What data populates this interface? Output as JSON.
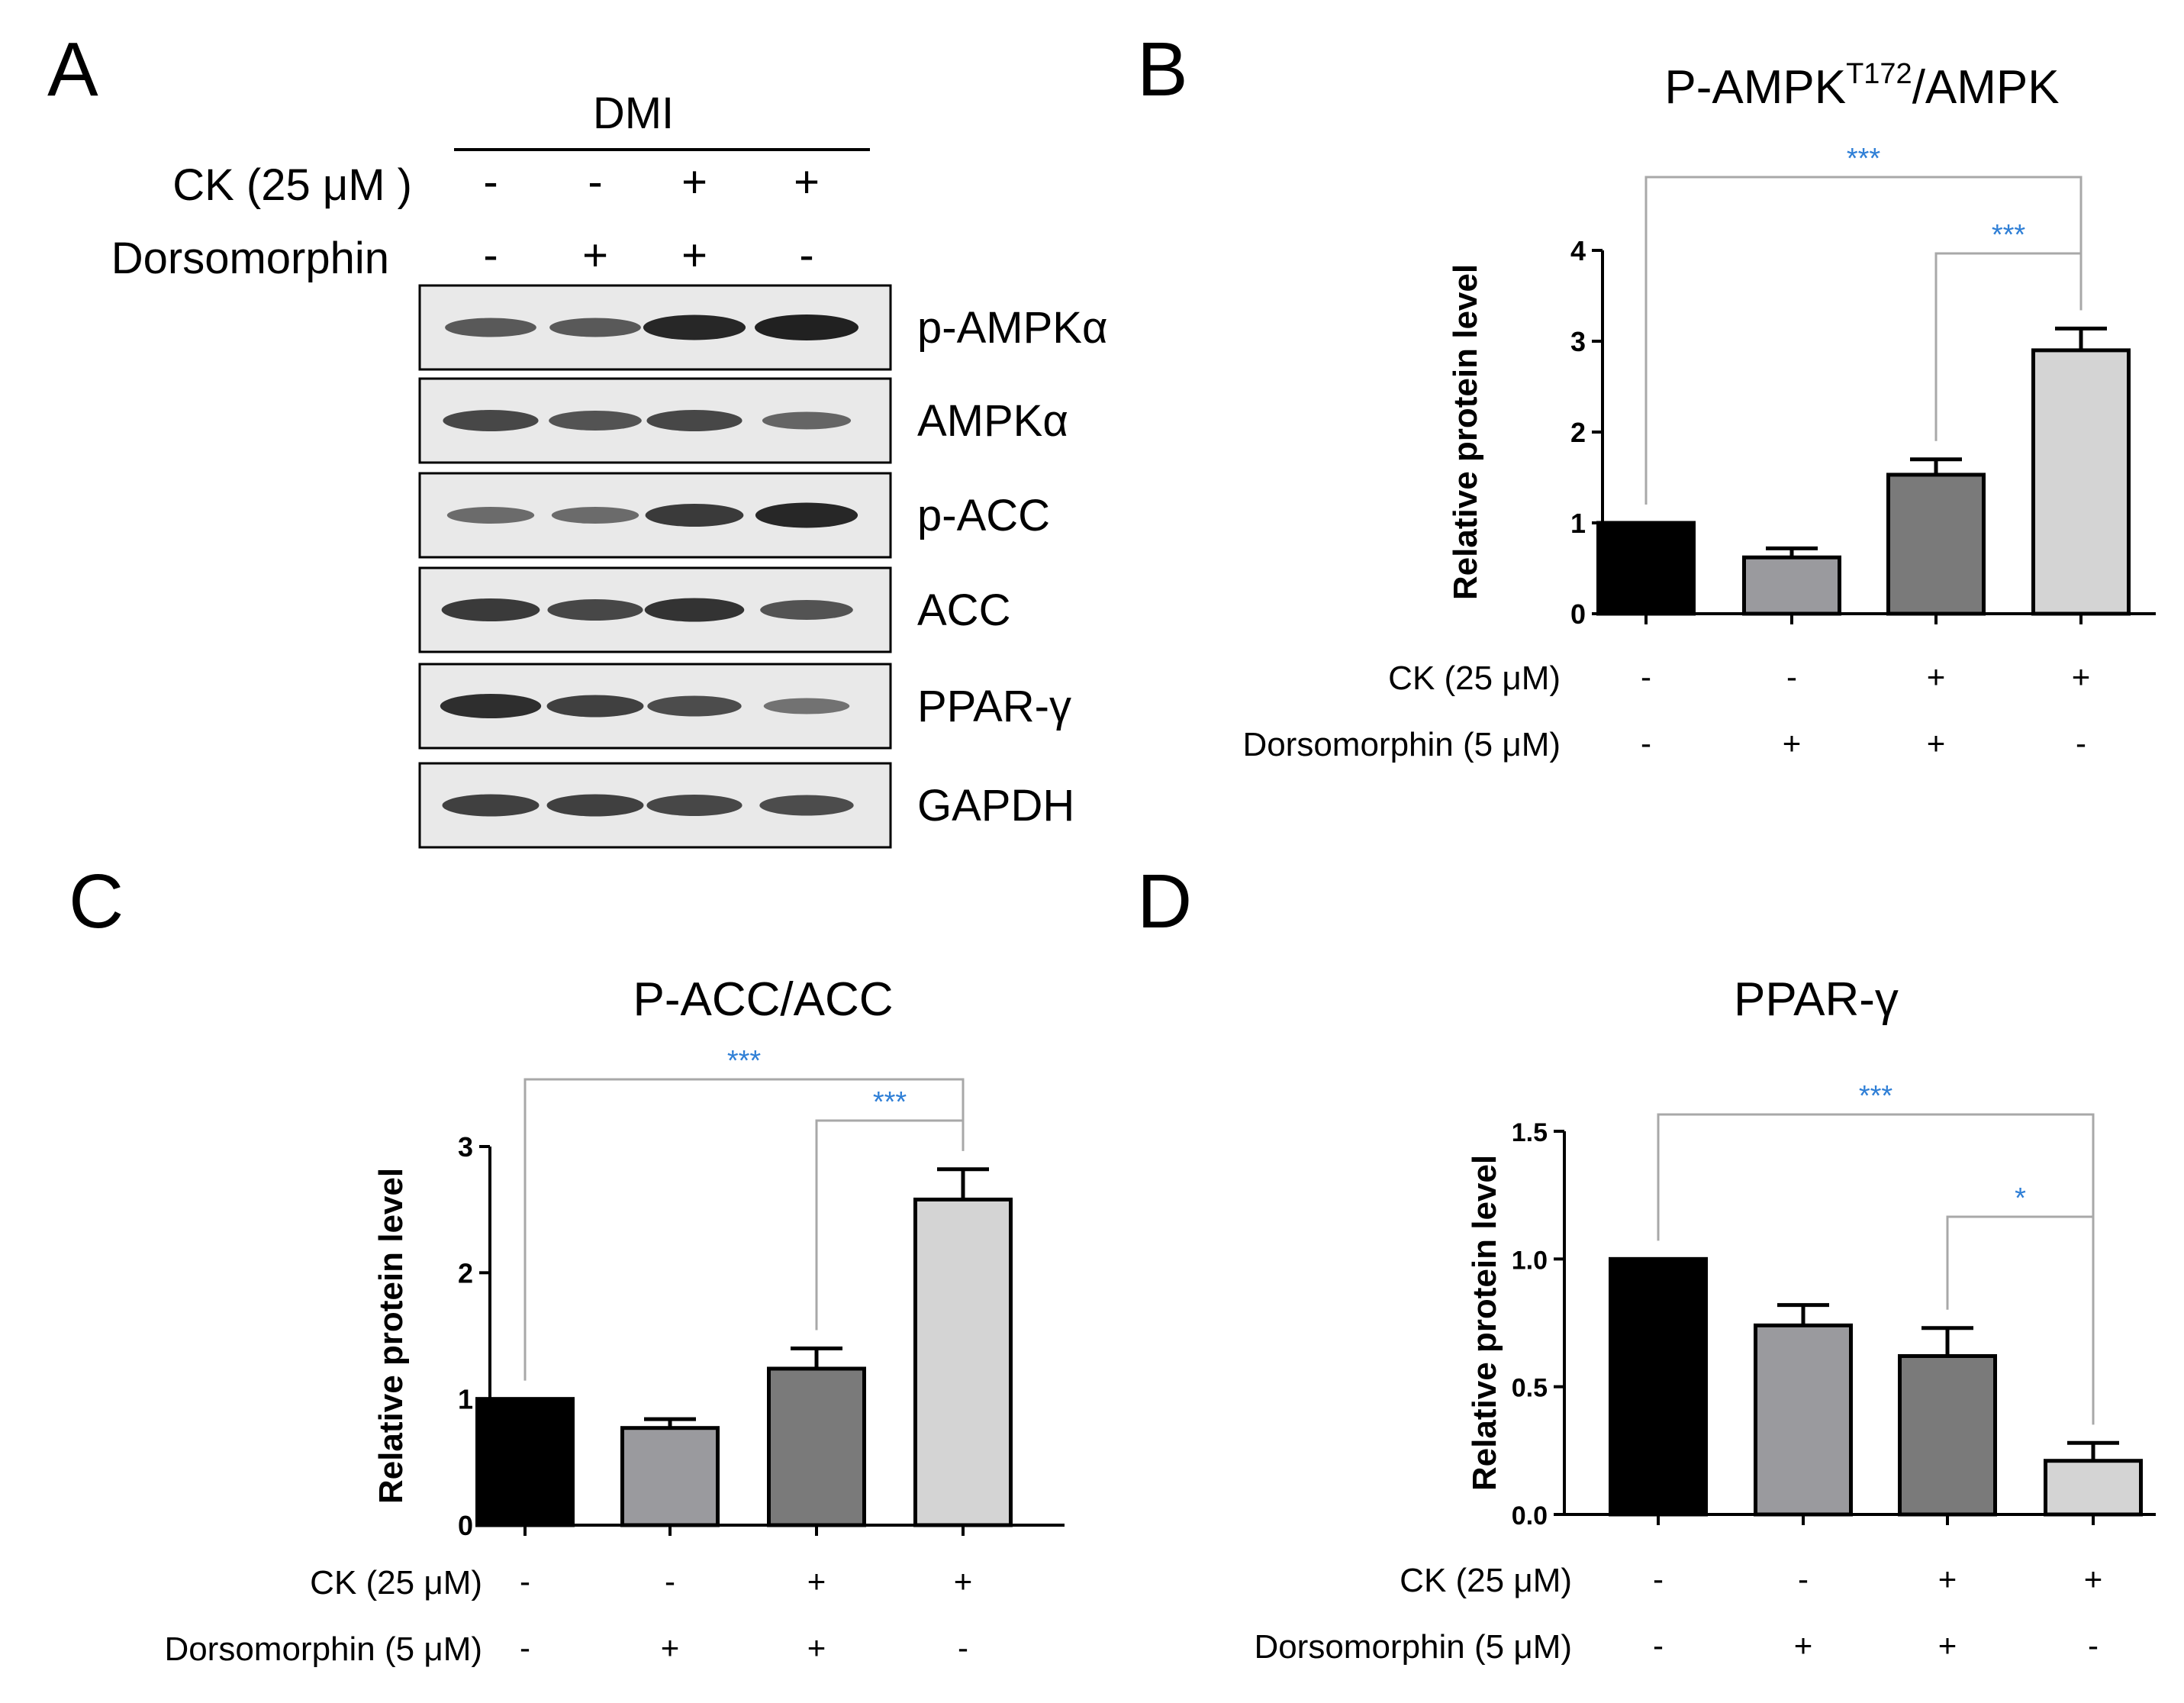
{
  "panel_a": {
    "letter": "A",
    "group_label": "DMI",
    "conditions": [
      {
        "label": "CK (25 μM )",
        "signs": [
          "-",
          "-",
          "+",
          "+"
        ]
      },
      {
        "label": "Dorsomorphin",
        "signs": [
          "-",
          "+",
          "+",
          "-"
        ]
      }
    ],
    "blots": [
      {
        "label": "p-AMPKα",
        "intensities": [
          0.55,
          0.55,
          0.95,
          1.0
        ]
      },
      {
        "label": "AMPKα",
        "intensities": [
          0.7,
          0.6,
          0.7,
          0.45
        ]
      },
      {
        "label": "p-ACC",
        "intensities": [
          0.4,
          0.4,
          0.8,
          0.95
        ]
      },
      {
        "label": "ACC",
        "intensities": [
          0.8,
          0.7,
          0.85,
          0.6
        ]
      },
      {
        "label": "PPAR-γ",
        "intensities": [
          0.9,
          0.75,
          0.65,
          0.35
        ]
      },
      {
        "label": "GAPDH",
        "intensities": [
          0.75,
          0.75,
          0.7,
          0.65
        ]
      }
    ]
  },
  "chart_data": [
    {
      "type": "bar",
      "letter": "B",
      "title_main": "P-AMPK",
      "title_sup": "T172",
      "title_tail": "/AMPK",
      "ylabel": "Relative protein level",
      "ylim": [
        0,
        4
      ],
      "yticks": [
        "0",
        "1",
        "2",
        "3",
        "4"
      ],
      "ytick_values": [
        0,
        1,
        2,
        3,
        4
      ],
      "values": [
        1.0,
        0.62,
        1.53,
        2.9
      ],
      "errors": [
        0,
        0.1,
        0.17,
        0.24
      ],
      "colors": [
        "#000000",
        "#9a9a9e",
        "#7a7a7a",
        "#d4d4d4"
      ],
      "conditions": [
        {
          "label": "CK (25 μM)",
          "signs": [
            "-",
            "-",
            "+",
            "+"
          ]
        },
        {
          "label": "Dorsomorphin (5 μM)",
          "signs": [
            "-",
            "+",
            "+",
            "-"
          ]
        }
      ],
      "significance": [
        {
          "from": 0,
          "to": 3,
          "label": "***",
          "level": "outer"
        },
        {
          "from": 2,
          "to": 3,
          "label": "***",
          "level": "inner"
        }
      ]
    },
    {
      "type": "bar",
      "letter": "C",
      "title_main": "P-ACC/ACC",
      "title_sup": "",
      "title_tail": "",
      "ylabel": "Relative protein level",
      "ylim": [
        0,
        3
      ],
      "yticks": [
        "0",
        "1",
        "2",
        "3"
      ],
      "ytick_values": [
        0,
        1,
        2,
        3
      ],
      "values": [
        1.0,
        0.77,
        1.24,
        2.58
      ],
      "errors": [
        0,
        0.07,
        0.16,
        0.24
      ],
      "colors": [
        "#000000",
        "#9a9a9e",
        "#7a7a7a",
        "#d4d4d4"
      ],
      "conditions": [
        {
          "label": "CK (25 μM)",
          "signs": [
            "-",
            "-",
            "+",
            "+"
          ]
        },
        {
          "label": "Dorsomorphin (5 μM)",
          "signs": [
            "-",
            "+",
            "+",
            "-"
          ]
        }
      ],
      "significance": [
        {
          "from": 0,
          "to": 3,
          "label": "***",
          "level": "outer"
        },
        {
          "from": 2,
          "to": 3,
          "label": "***",
          "level": "inner"
        }
      ]
    },
    {
      "type": "bar",
      "letter": "D",
      "title_main": "PPAR-γ",
      "title_sup": "",
      "title_tail": "",
      "ylabel": "Relative protein level",
      "ylim": [
        0,
        1.5
      ],
      "yticks": [
        "0.0",
        "0.5",
        "1.0",
        "1.5"
      ],
      "ytick_values": [
        0,
        0.5,
        1.0,
        1.5
      ],
      "values": [
        1.0,
        0.74,
        0.62,
        0.21
      ],
      "errors": [
        0,
        0.08,
        0.11,
        0.07
      ],
      "colors": [
        "#000000",
        "#9a9a9e",
        "#7a7a7a",
        "#d4d4d4"
      ],
      "conditions": [
        {
          "label": "CK (25 μM)",
          "signs": [
            "-",
            "-",
            "+",
            "+"
          ]
        },
        {
          "label": "Dorsomorphin (5 μM)",
          "signs": [
            "-",
            "+",
            "+",
            "-"
          ]
        }
      ],
      "significance": [
        {
          "from": 0,
          "to": 3,
          "label": "***",
          "level": "outer"
        },
        {
          "from": 2,
          "to": 3,
          "label": "*",
          "level": "inner"
        }
      ]
    }
  ],
  "colors": {
    "significance_text": "#2f7fd6",
    "bracket_line": "#a8a8a8",
    "axis": "#000000"
  }
}
